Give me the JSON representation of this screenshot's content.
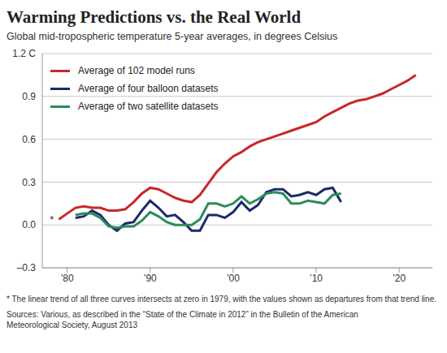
{
  "chart_data": {
    "type": "line",
    "title": "Warming Predictions vs. the Real World",
    "subtitle": "Global mid-tropospheric temperature 5-year averages, in degrees Celsius",
    "x": [
      1979,
      1980,
      1981,
      1982,
      1983,
      1984,
      1985,
      1986,
      1987,
      1988,
      1989,
      1990,
      1991,
      1992,
      1993,
      1994,
      1995,
      1996,
      1997,
      1998,
      1999,
      2000,
      2001,
      2002,
      2003,
      2004,
      2005,
      2006,
      2007,
      2008,
      2009,
      2010,
      2011,
      2012,
      2013,
      2014,
      2015,
      2016,
      2017,
      2018,
      2019,
      2020,
      2021,
      2022
    ],
    "series": [
      {
        "name": "Average of 102 model runs",
        "color": "#c8272b",
        "values": [
          0.04,
          0.08,
          0.12,
          0.13,
          0.12,
          0.12,
          0.1,
          0.1,
          0.11,
          0.16,
          0.22,
          0.26,
          0.25,
          0.22,
          0.19,
          0.17,
          0.16,
          0.21,
          0.29,
          0.37,
          0.43,
          0.48,
          0.51,
          0.55,
          0.58,
          0.6,
          0.62,
          0.64,
          0.66,
          0.68,
          0.7,
          0.72,
          0.76,
          0.79,
          0.82,
          0.85,
          0.87,
          0.88,
          0.9,
          0.92,
          0.95,
          0.98,
          1.01,
          1.05
        ]
      },
      {
        "name": "Average of four balloon datasets",
        "color": "#1b2a6b",
        "values": [
          null,
          null,
          0.05,
          0.06,
          0.1,
          0.07,
          0.0,
          -0.04,
          0.01,
          0.02,
          0.1,
          0.17,
          0.12,
          0.06,
          0.07,
          0.02,
          -0.04,
          -0.04,
          0.07,
          0.07,
          0.05,
          0.09,
          0.16,
          0.1,
          0.14,
          0.23,
          0.25,
          0.25,
          0.2,
          0.21,
          0.23,
          0.21,
          0.25,
          0.26,
          0.16,
          null,
          null,
          null,
          null,
          null,
          null,
          null,
          null,
          null
        ]
      },
      {
        "name": "Average of two satellite datasets",
        "color": "#2a8c5a",
        "values": [
          null,
          null,
          0.07,
          0.08,
          0.08,
          0.05,
          -0.01,
          -0.02,
          -0.01,
          -0.01,
          0.03,
          0.09,
          0.06,
          0.02,
          0.0,
          0.0,
          0.0,
          0.04,
          0.15,
          0.15,
          0.13,
          0.15,
          0.2,
          0.15,
          0.18,
          0.22,
          0.23,
          0.22,
          0.15,
          0.15,
          0.17,
          0.16,
          0.15,
          0.21,
          0.22,
          null,
          null,
          null,
          null,
          null,
          null,
          null,
          null,
          null
        ]
      }
    ],
    "xlim": [
      1977,
      2024
    ],
    "xticks": [
      {
        "value": 1980,
        "label": "’80"
      },
      {
        "value": 1990,
        "label": "’90"
      },
      {
        "value": 2000,
        "label": "’00"
      },
      {
        "value": 2010,
        "label": "’10"
      },
      {
        "value": 2020,
        "label": "’20"
      }
    ],
    "ylim": [
      -0.3,
      1.2
    ],
    "yticks": [
      {
        "value": -0.3,
        "label": "–0.3"
      },
      {
        "value": 0,
        "label": "0.0"
      },
      0.3,
      0.6,
      0.9,
      {
        "value": 1.2,
        "label": "1.2 C"
      }
    ],
    "grid": true,
    "legend": "upper left",
    "annotations": [
      "*"
    ],
    "footnote": "* The linear trend of all three curves intersects at zero in 1979, with the values shown as departures from that trend line.",
    "source": "Sources: Various, as described in the “State of the Climate in 2012” in the Bulletin of the American Meteorological Society, August 2013"
  }
}
